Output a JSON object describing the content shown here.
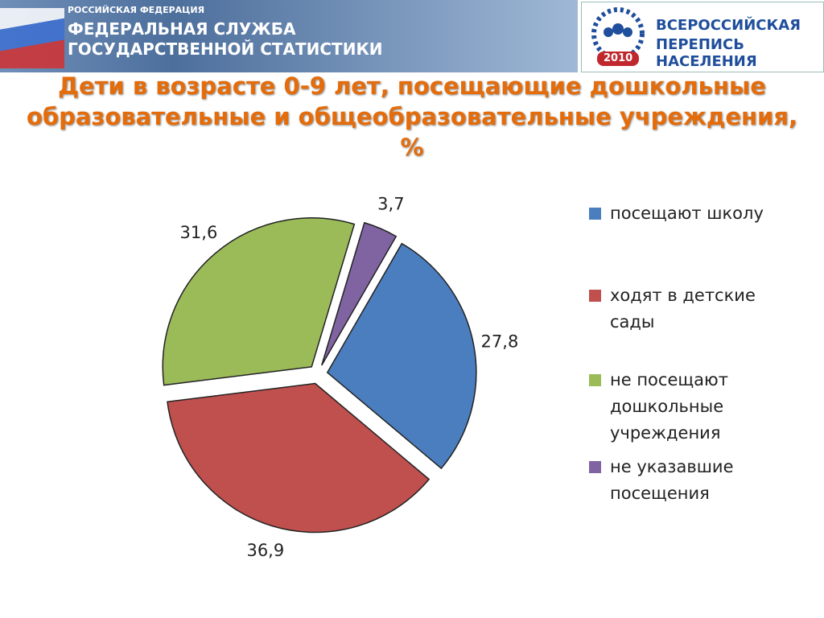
{
  "header": {
    "country": "РОССИЙСКАЯ ФЕДЕРАЦИЯ",
    "agency_line1": "ФЕДЕРАЛЬНАЯ СЛУЖБА",
    "agency_line2": "ГОСУДАРСТВЕННОЙ СТАТИСТИКИ",
    "census_line1": "ВСЕРОССИЙСКАЯ",
    "census_line2": "ПЕРЕПИСЬ НАСЕЛЕНИЯ",
    "census_year": "2010"
  },
  "chart_data": {
    "type": "pie",
    "title": "Дети в возрасте 0-9 лет, посещающие дошкольные образовательные и общеобразовательные учреждения, %",
    "categories": [
      "посещают школу",
      "ходят в детские сады",
      "не посещают дошкольные учреждения",
      "не указавшие посещения"
    ],
    "values": [
      27.8,
      36.9,
      31.6,
      3.7
    ],
    "value_labels": [
      "27,8",
      "36,9",
      "31,6",
      "3,7"
    ],
    "colors": [
      "#4a7ebf",
      "#c0504d",
      "#9bbb59",
      "#8064a2"
    ],
    "legend": "right"
  }
}
